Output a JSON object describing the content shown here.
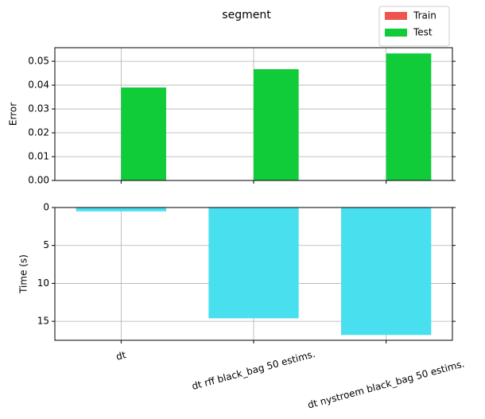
{
  "title": "segment",
  "chart_data": [
    {
      "type": "bar",
      "ylabel": "Error",
      "categories": [
        "dt",
        "dt rff black_bag 50 estims.",
        "dt nystroem black_bag 50 estims."
      ],
      "series": [
        {
          "name": "Train",
          "color": "#f05450",
          "values": [
            0,
            0,
            0
          ]
        },
        {
          "name": "Test",
          "color": "#10cc38",
          "values": [
            0.039,
            0.0467,
            0.0533
          ]
        }
      ],
      "ylim": [
        0,
        0.0557
      ],
      "yticks": [
        {
          "value": 0,
          "label": "0.00"
        },
        {
          "value": 0.01,
          "label": "0.01"
        },
        {
          "value": 0.02,
          "label": "0.02"
        },
        {
          "value": 0.03,
          "label": "0.03"
        },
        {
          "value": 0.04,
          "label": "0.04"
        },
        {
          "value": 0.05,
          "label": "0.05"
        }
      ],
      "grid": true,
      "legend": "upper right"
    },
    {
      "type": "bar",
      "ylabel": "Time (s)",
      "categories": [
        "dt",
        "dt rff black_bag 50 estims.",
        "dt nystroem black_bag 50 estims."
      ],
      "values": [
        0.5,
        14.6,
        16.8
      ],
      "color": "#48dfee",
      "ylim": [
        0,
        17.5
      ],
      "yticks": [
        0,
        5,
        10,
        15
      ],
      "inverted": true,
      "grid": true
    }
  ]
}
